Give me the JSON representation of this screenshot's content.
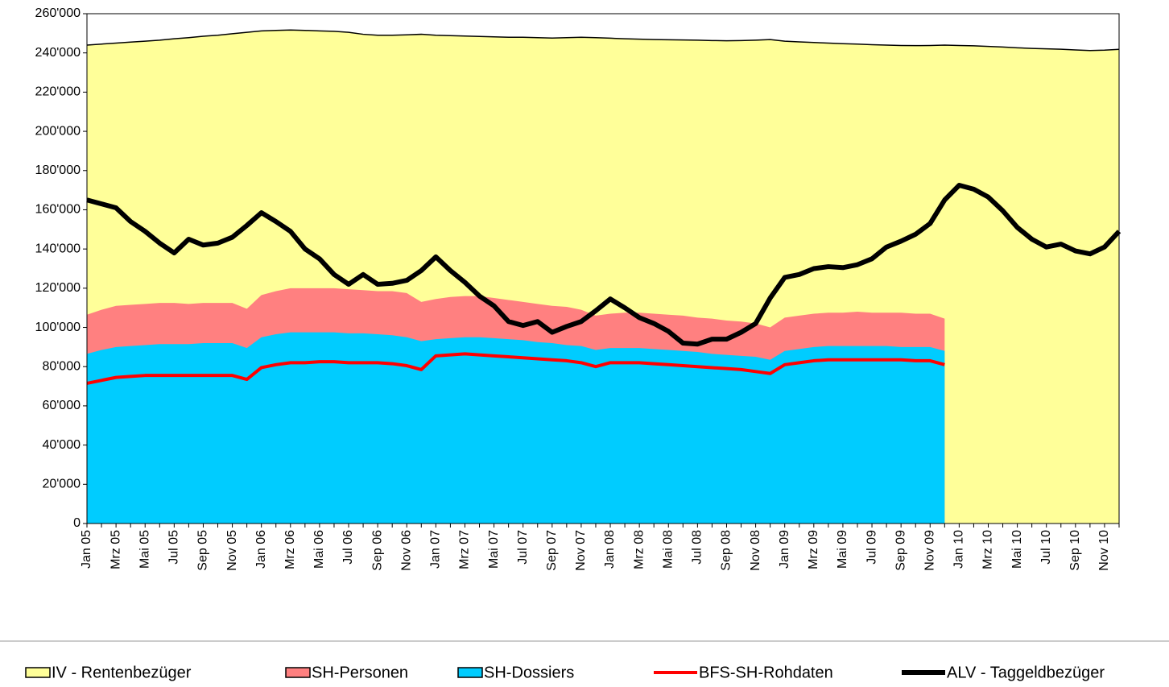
{
  "chart_data": {
    "type": "area",
    "categories": [
      "Jan 05",
      null,
      "Mrz 05",
      null,
      "Mai 05",
      null,
      "Jul 05",
      null,
      "Sep 05",
      null,
      "Nov 05",
      null,
      "Jan 06",
      null,
      "Mrz 06",
      null,
      "Mai 06",
      null,
      "Jul 06",
      null,
      "Sep 06",
      null,
      "Nov 06",
      null,
      "Jan 07",
      null,
      "Mrz 07",
      null,
      "Mai 07",
      null,
      "Jul 07",
      null,
      "Sep 07",
      null,
      "Nov 07",
      null,
      "Jan 08",
      null,
      "Mrz 08",
      null,
      "Mai 08",
      null,
      "Jul 08",
      null,
      "Sep 08",
      null,
      "Nov 08",
      null,
      "Jan 09",
      null,
      "Mrz 09",
      null,
      "Mai 09",
      null,
      "Jul 09",
      null,
      "Sep 09",
      null,
      "Nov 09",
      null,
      "Jan 10",
      null,
      "Mrz 10",
      null,
      "Mai 10",
      null,
      "Jul 10",
      null,
      "Sep 10",
      null,
      "Nov 10",
      null
    ],
    "series": [
      {
        "name": "IV - Rentenbezüger",
        "type": "area",
        "color": "#ffff99",
        "line_color": "#000000",
        "values": [
          244000,
          244500,
          245000,
          245500,
          246000,
          246500,
          247200,
          247800,
          248500,
          249000,
          249800,
          250500,
          251200,
          251500,
          251700,
          251500,
          251200,
          251000,
          250500,
          249500,
          249000,
          249000,
          249200,
          249500,
          249000,
          248800,
          248600,
          248400,
          248200,
          248000,
          248000,
          247800,
          247600,
          247800,
          248000,
          247800,
          247500,
          247200,
          247000,
          246800,
          246700,
          246600,
          246500,
          246300,
          246200,
          246300,
          246500,
          246800,
          246000,
          245600,
          245300,
          245000,
          244700,
          244500,
          244200,
          244000,
          243800,
          243700,
          243800,
          244000,
          243800,
          243600,
          243300,
          243000,
          242600,
          242300,
          242100,
          241900,
          241500,
          241200,
          241400,
          241800
        ]
      },
      {
        "name": "SH-Personen",
        "type": "area",
        "color": "#ff8080",
        "values": [
          106500,
          109000,
          111000,
          111500,
          112000,
          112500,
          112500,
          112000,
          112500,
          112500,
          112500,
          109500,
          116500,
          118500,
          120000,
          120000,
          120000,
          120000,
          119500,
          119000,
          118500,
          118500,
          117500,
          113000,
          114500,
          115500,
          116000,
          116000,
          115000,
          114000,
          113000,
          112000,
          111000,
          110500,
          109000,
          106000,
          107000,
          107500,
          107500,
          107000,
          106500,
          106000,
          105000,
          104500,
          103500,
          103000,
          102000,
          100000,
          105000,
          106000,
          107000,
          107500,
          107500,
          108000,
          107500,
          107500,
          107500,
          107000,
          107000,
          104500,
          null,
          null,
          null,
          null,
          null,
          null,
          null,
          null,
          null,
          null,
          null,
          null
        ]
      },
      {
        "name": "SH-Dossiers",
        "type": "area",
        "color": "#00ccff",
        "values": [
          86500,
          88500,
          90000,
          90500,
          91000,
          91500,
          91500,
          91500,
          92000,
          92000,
          92000,
          89500,
          95000,
          96500,
          97500,
          97500,
          97500,
          97500,
          97000,
          97000,
          96500,
          96000,
          95000,
          93000,
          94000,
          94500,
          95000,
          95000,
          94500,
          94000,
          93500,
          92500,
          92000,
          91000,
          90500,
          88500,
          89500,
          89500,
          89500,
          89000,
          88500,
          88000,
          87500,
          86500,
          86000,
          85500,
          85000,
          83500,
          88000,
          89000,
          90000,
          90500,
          90500,
          90500,
          90500,
          90500,
          90000,
          90000,
          90000,
          88000,
          null,
          null,
          null,
          null,
          null,
          null,
          null,
          null,
          null,
          null,
          null,
          null
        ]
      },
      {
        "name": "BFS-SH-Rohdaten",
        "type": "line",
        "color": "#ff0000",
        "values": [
          71500,
          73000,
          74500,
          75000,
          75500,
          75500,
          75500,
          75500,
          75500,
          75500,
          75500,
          73500,
          79500,
          81000,
          82000,
          82000,
          82500,
          82500,
          82000,
          82000,
          82000,
          81500,
          80500,
          78500,
          85500,
          86000,
          86500,
          86000,
          85500,
          85000,
          84500,
          84000,
          83500,
          83000,
          82000,
          80000,
          82000,
          82000,
          82000,
          81500,
          81000,
          80500,
          80000,
          79500,
          79000,
          78500,
          77500,
          76500,
          81000,
          82000,
          83000,
          83500,
          83500,
          83500,
          83500,
          83500,
          83500,
          83000,
          83000,
          81000,
          null,
          null,
          null,
          null,
          null,
          null,
          null,
          null,
          null,
          null,
          null,
          null
        ]
      },
      {
        "name": "ALV - Taggeldbezüger",
        "type": "line",
        "color": "#000000",
        "values": [
          165000,
          163000,
          161000,
          154000,
          149000,
          143000,
          138000,
          145000,
          142000,
          143000,
          146000,
          152000,
          158500,
          154000,
          149000,
          140000,
          135000,
          127000,
          122000,
          127000,
          122000,
          122500,
          124000,
          129000,
          136000,
          129000,
          123000,
          116000,
          111000,
          103000,
          101000,
          103000,
          97500,
          100500,
          103000,
          108500,
          114500,
          110000,
          105000,
          102000,
          98000,
          92000,
          91500,
          94000,
          94000,
          97500,
          102000,
          115000,
          125500,
          127000,
          130000,
          131000,
          130500,
          132000,
          135000,
          141000,
          144000,
          147500,
          153000,
          165000,
          172500,
          170500,
          166500,
          159500,
          151000,
          145000,
          141000,
          142500,
          139000,
          137500,
          141000,
          149000
        ]
      }
    ],
    "ylim": [
      0,
      260000
    ],
    "yticks": [
      0,
      {
        "value": 20000,
        "label": "20'000"
      },
      {
        "value": 40000,
        "label": "40'000"
      },
      {
        "value": 60000,
        "label": "60'000"
      },
      {
        "value": 80000,
        "label": "80'000"
      },
      {
        "value": 100000,
        "label": "100'000"
      },
      {
        "value": 120000,
        "label": "120'000"
      },
      {
        "value": 140000,
        "label": "140'000"
      },
      {
        "value": 160000,
        "label": "160'000"
      },
      {
        "value": 180000,
        "label": "180'000"
      },
      {
        "value": 200000,
        "label": "200'000"
      },
      {
        "value": 220000,
        "label": "220'000"
      },
      {
        "value": 240000,
        "label": "240'000"
      },
      {
        "value": 260000,
        "label": "260'000"
      }
    ],
    "grid": false,
    "legend": "bottom"
  }
}
